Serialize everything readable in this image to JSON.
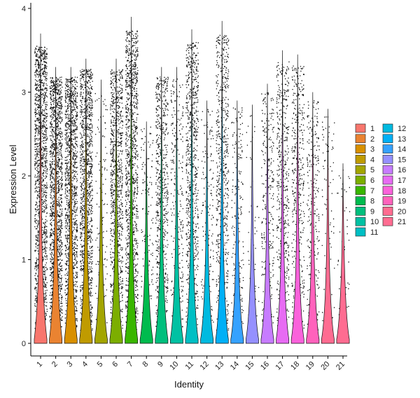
{
  "chart_data": {
    "type": "violin",
    "title": "",
    "xlabel": "Identity",
    "ylabel": "Expression Level",
    "ylim": [
      0,
      4
    ],
    "yticks": [
      0,
      1,
      2,
      3,
      4
    ],
    "grid": false,
    "legend_placement": "right",
    "legend_columns": 2,
    "categories": [
      "1",
      "2",
      "3",
      "4",
      "5",
      "6",
      "7",
      "8",
      "9",
      "10",
      "11",
      "12",
      "13",
      "14",
      "15",
      "16",
      "17",
      "18",
      "19",
      "20",
      "21"
    ],
    "colors": [
      "#F8766D",
      "#EA8331",
      "#D89000",
      "#C09B00",
      "#A3A500",
      "#7CAE00",
      "#39B600",
      "#00BB4E",
      "#00BF7D",
      "#00C1A3",
      "#00BFC4",
      "#00BAE0",
      "#00B0F6",
      "#35A2FF",
      "#9590FF",
      "#C77CFF",
      "#E76BF3",
      "#FA62DB",
      "#FF62BC",
      "#FF6C91",
      "#FF6C91"
    ],
    "series": [
      {
        "name": "1",
        "max": 3.7,
        "point_density": 1.0
      },
      {
        "name": "2",
        "max": 3.3,
        "point_density": 1.0
      },
      {
        "name": "3",
        "max": 3.3,
        "point_density": 0.9
      },
      {
        "name": "4",
        "max": 3.4,
        "point_density": 0.85
      },
      {
        "name": "5",
        "max": 3.15,
        "point_density": 0.08
      },
      {
        "name": "6",
        "max": 3.4,
        "point_density": 0.65
      },
      {
        "name": "7",
        "max": 3.9,
        "point_density": 0.8
      },
      {
        "name": "8",
        "max": 2.65,
        "point_density": 0.1
      },
      {
        "name": "9",
        "max": 3.3,
        "point_density": 0.45
      },
      {
        "name": "10",
        "max": 3.3,
        "point_density": 0.18
      },
      {
        "name": "11",
        "max": 3.75,
        "point_density": 0.55
      },
      {
        "name": "12",
        "max": 2.9,
        "point_density": 0.12
      },
      {
        "name": "13",
        "max": 3.85,
        "point_density": 0.45
      },
      {
        "name": "14",
        "max": 2.9,
        "point_density": 0.14
      },
      {
        "name": "15",
        "max": 2.85,
        "point_density": 0.04
      },
      {
        "name": "16",
        "max": 3.1,
        "point_density": 0.2
      },
      {
        "name": "17",
        "max": 3.5,
        "point_density": 0.35
      },
      {
        "name": "18",
        "max": 3.45,
        "point_density": 0.3
      },
      {
        "name": "19",
        "max": 3.0,
        "point_density": 0.18
      },
      {
        "name": "20",
        "max": 2.8,
        "point_density": 0.06
      },
      {
        "name": "21",
        "max": 2.15,
        "point_density": 0.03
      }
    ]
  }
}
